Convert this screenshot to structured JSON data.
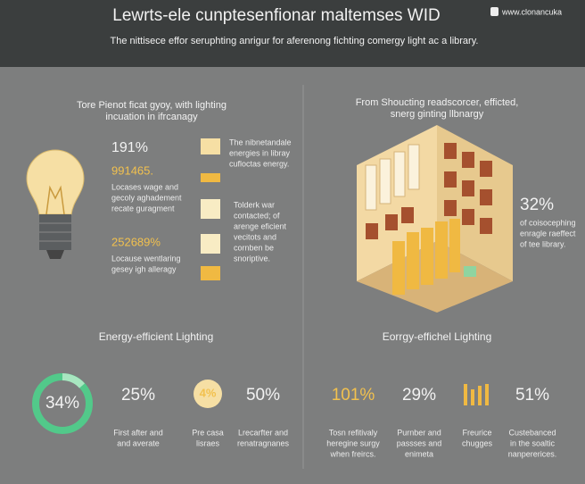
{
  "header": {
    "title": "Lewrts-ele cunptesenfionar maltemses WID",
    "subtitle": "The nittisece effor seruphting anrigur for aferenong fichting comergy light ac a library.",
    "logo": "www.clonancuka"
  },
  "left": {
    "heading": [
      "Tore Pienot ficat gyoy, with lighting",
      "incuation in ifrcanagy"
    ],
    "stats": [
      {
        "value": "191%"
      },
      {
        "value": "991465.",
        "lines": [
          "Locases wage and",
          "gecoly aghadement",
          "recate guragment"
        ]
      },
      {
        "value": "252689%",
        "lines": [
          "Locause wentlaring",
          "gesey igh alleragy"
        ]
      }
    ],
    "notes": [
      [
        "The nibnetandale",
        "energies in libray",
        "cufloctas energy."
      ],
      [
        "Tolderk war",
        "contacted; of",
        "arenge eficient",
        "vecitots and",
        "cornben be",
        "snoriptive."
      ]
    ]
  },
  "right": {
    "heading": [
      "From Shoucting readscorcer, efficted,",
      "snerg ginting llbnargy"
    ],
    "stat": {
      "value": "32%",
      "lines": [
        "of coisocephing",
        "enragle raeffect",
        "of tee library."
      ]
    }
  },
  "bottom": {
    "left_heading": "Energy-efficient Lighting",
    "right_heading": "Eorrgy-effichel Lighting",
    "items": [
      {
        "value": "34%"
      },
      {
        "value": "25%",
        "lines": [
          "First after and",
          "and averate"
        ]
      },
      {
        "value": "4%",
        "lines": [
          "Pre casa",
          "lisraes"
        ]
      },
      {
        "value": "50%",
        "lines": [
          "Lrecarfter and",
          "renatragnanes"
        ]
      },
      {
        "value": "101%",
        "lines": [
          "Tosn refitivaly",
          "heregine surgy",
          "when freircs."
        ]
      },
      {
        "value": "29%",
        "lines": [
          "Purnber and",
          "passses and",
          "enimeta"
        ]
      },
      {
        "lines": [
          "Freurice",
          "chugges"
        ]
      },
      {
        "value": "51%",
        "lines": [
          "Custebanced",
          "in the soaltic",
          "nanpererices."
        ]
      }
    ]
  }
}
